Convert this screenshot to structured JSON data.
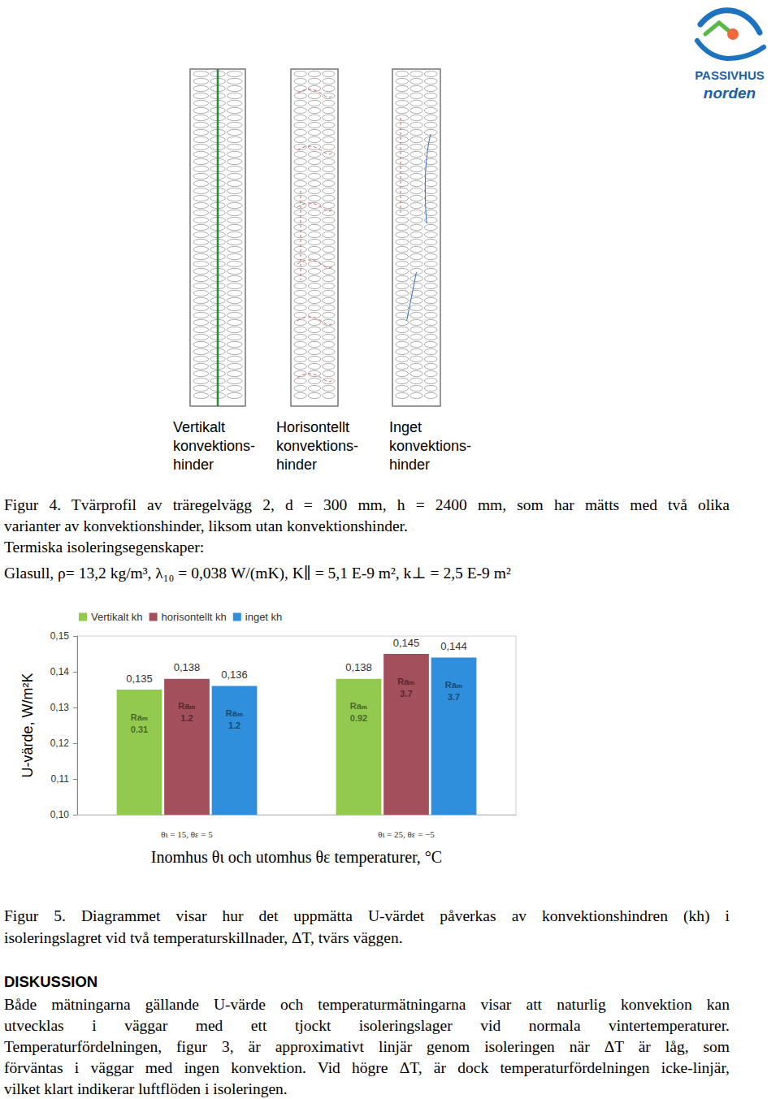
{
  "header": {
    "logo": [
      "PASSIVHUS",
      "norden"
    ]
  },
  "figure4": {
    "panels": [
      [
        "Vertikalt",
        "konvektions-",
        "hinder"
      ],
      [
        "Horisontellt",
        "konvektions-",
        "hinder"
      ],
      [
        "Inget",
        "konvektions-",
        "hinder"
      ]
    ],
    "caption": [
      "Figur 4. Tvärprofil av träregelvägg 2, d = 300 mm, h = 2400 mm, som har mätts med två olika",
      "varianter av konvektionshinder, liksom utan konvektionshinder.",
      "Termiska isoleringsegenskaper:",
      "Glasull, ρ= 13,2 kg/m³, λ₁₀ = 0,038 W/(mK), K∥ = 5,1 E-9 m², k⊥ = 2,5 E-9 m²"
    ]
  },
  "chart_data": {
    "type": "bar",
    "categories": [
      "θι = 15, θε = 5",
      "θι = 25, θε = −5"
    ],
    "xlabel": "Inomhus θι och utomhus θε temperaturer, °C",
    "ylabel": "U-värde, W/m²K",
    "ylim": [
      0.1,
      0.15
    ],
    "yticks": [
      {
        "value": 0.1,
        "label": "0,10"
      },
      {
        "value": 0.11,
        "label": "0,11"
      },
      {
        "value": 0.12,
        "label": "0,12"
      },
      {
        "value": 0.13,
        "label": "0,13"
      },
      {
        "value": 0.14,
        "label": "0,14"
      },
      {
        "value": 0.15,
        "label": "0,15"
      }
    ],
    "grid": false,
    "legend": "top-left",
    "data_labels": true,
    "inner_label": "Raₘ",
    "series": [
      {
        "name": "Vertikalt kh",
        "color": "#92c94f",
        "values": [
          0.135,
          0.138
        ],
        "value_labels": [
          "0,135",
          "0,138"
        ],
        "ra_values": [
          0.31,
          0.92
        ]
      },
      {
        "name": "horisontellt kh",
        "color": "#a4505c",
        "values": [
          0.138,
          0.145
        ],
        "value_labels": [
          "0,138",
          "0,145"
        ],
        "ra_values": [
          1.2,
          3.7
        ]
      },
      {
        "name": "inget kh",
        "color": "#2f8fdc",
        "values": [
          0.136,
          0.144
        ],
        "value_labels": [
          "0,136",
          "0,144"
        ],
        "ra_values": [
          1.2,
          3.7
        ]
      }
    ]
  },
  "figure5": {
    "caption": [
      "Figur 5. Diagrammet visar hur det uppmätta U-värdet påverkas av konvektionshindren (kh) i",
      "isoleringslagret vid två temperaturskillnader, ΔT, tvärs väggen."
    ]
  },
  "discussion": {
    "heading": "DISKUSSION",
    "lines": [
      "Både mätningarna gällande U-värde och temperaturmätningarna visar att naturlig konvektion kan",
      "utvecklas i väggar med ett tjockt isoleringslager vid normala vintertemperaturer.",
      "Temperaturfördelningen, figur 3, är approximativt linjär genom isoleringen när ΔT är låg, som",
      "förväntas i väggar med ingen konvektion. Vid högre ΔT, är dock temperaturfördelningen icke-linjär,",
      "vilket klart indikerar luftflöden i isoleringen."
    ]
  }
}
